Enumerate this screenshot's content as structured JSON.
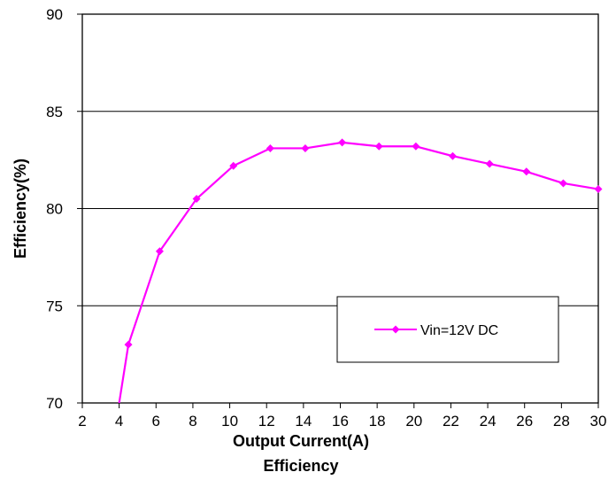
{
  "chart_data": {
    "type": "line",
    "title": "Efficiency",
    "xlabel": "Output Current(A)",
    "ylabel": "Efficiency(%)",
    "xlim": [
      2,
      30
    ],
    "ylim": [
      70,
      90
    ],
    "x_ticks": [
      2,
      4,
      6,
      8,
      10,
      12,
      14,
      16,
      18,
      20,
      22,
      24,
      26,
      28,
      30
    ],
    "y_ticks": [
      70,
      75,
      80,
      85,
      90
    ],
    "grid": "horizontal",
    "legend_position": "center-right",
    "series": [
      {
        "name": "Vin=12V DC",
        "color": "#ff00ff",
        "marker": "diamond",
        "x": [
          4,
          4.5,
          6.2,
          8.2,
          10.2,
          12.2,
          14.1,
          16.1,
          18.1,
          20.1,
          22.1,
          24.1,
          26.1,
          28.1,
          30
        ],
        "y": [
          70.0,
          73.0,
          77.8,
          80.5,
          82.2,
          83.1,
          83.1,
          83.4,
          83.2,
          83.2,
          82.7,
          82.3,
          81.9,
          81.3,
          81.0
        ]
      }
    ]
  }
}
